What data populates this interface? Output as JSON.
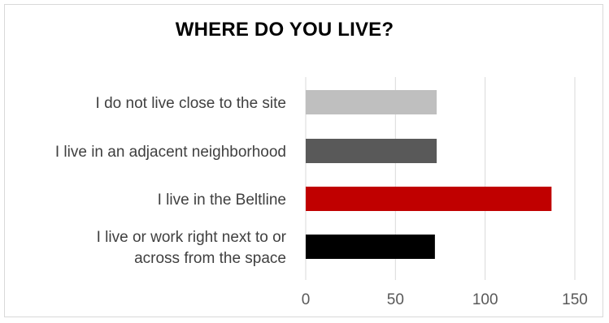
{
  "chart_data": {
    "type": "bar",
    "orientation": "horizontal",
    "title": "WHERE DO YOU LIVE?",
    "categories": [
      "I do not live close to the site",
      "I live in an adjacent neighborhood",
      "I live in the Beltline",
      "I live or work right next to or across from the space"
    ],
    "category_lines": [
      [
        "I do not live close to the site"
      ],
      [
        "I live in an adjacent neighborhood"
      ],
      [
        "I live in the Beltline"
      ],
      [
        "I live or work right next to or",
        "across from the space"
      ]
    ],
    "values": [
      73,
      73,
      137,
      72
    ],
    "bar_colors": [
      "#bfbfbf",
      "#595959",
      "#c00000",
      "#000000"
    ],
    "xlim": [
      0,
      150
    ],
    "xticks": [
      0,
      50,
      100,
      150
    ],
    "grid": true,
    "xlabel": "",
    "ylabel": ""
  }
}
